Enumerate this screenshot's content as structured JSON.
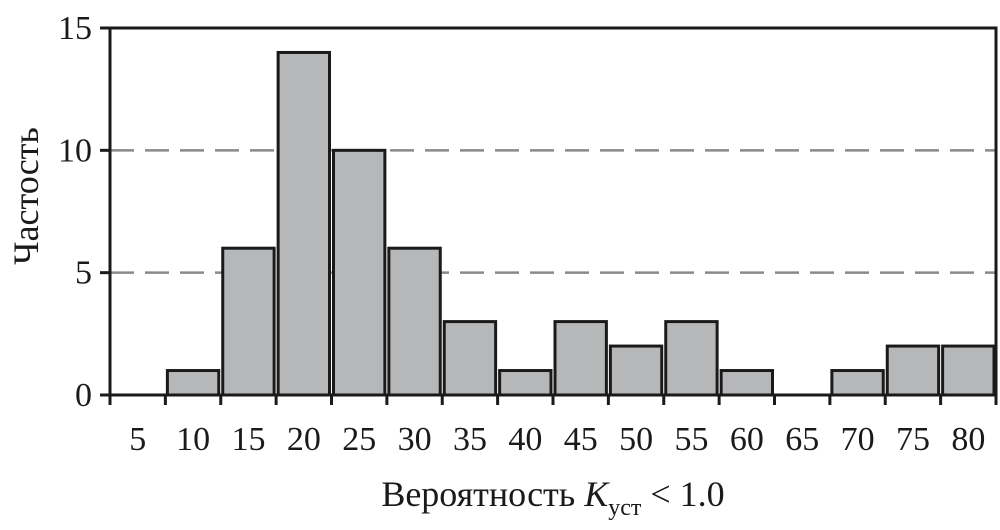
{
  "chart_data": {
    "type": "bar",
    "categories": [
      "5",
      "10",
      "15",
      "20",
      "25",
      "30",
      "35",
      "40",
      "45",
      "50",
      "55",
      "60",
      "65",
      "70",
      "75",
      "80"
    ],
    "values": [
      0,
      1,
      6,
      14,
      10,
      6,
      3,
      1,
      3,
      2,
      3,
      1,
      0,
      1,
      2,
      2
    ],
    "title": "",
    "xlabel": {
      "prefix": "Вероятность ",
      "variable": "K",
      "subscript": "уст",
      "suffix": " < 1.0"
    },
    "ylabel": "Частость",
    "ylim": [
      0,
      15
    ],
    "yticks": [
      "0",
      "5",
      "10",
      "15"
    ],
    "grid": "horizontal dashed at 5 and 10",
    "bar_color": "#b6b7b9",
    "grid_color": "#8a8a8a"
  }
}
